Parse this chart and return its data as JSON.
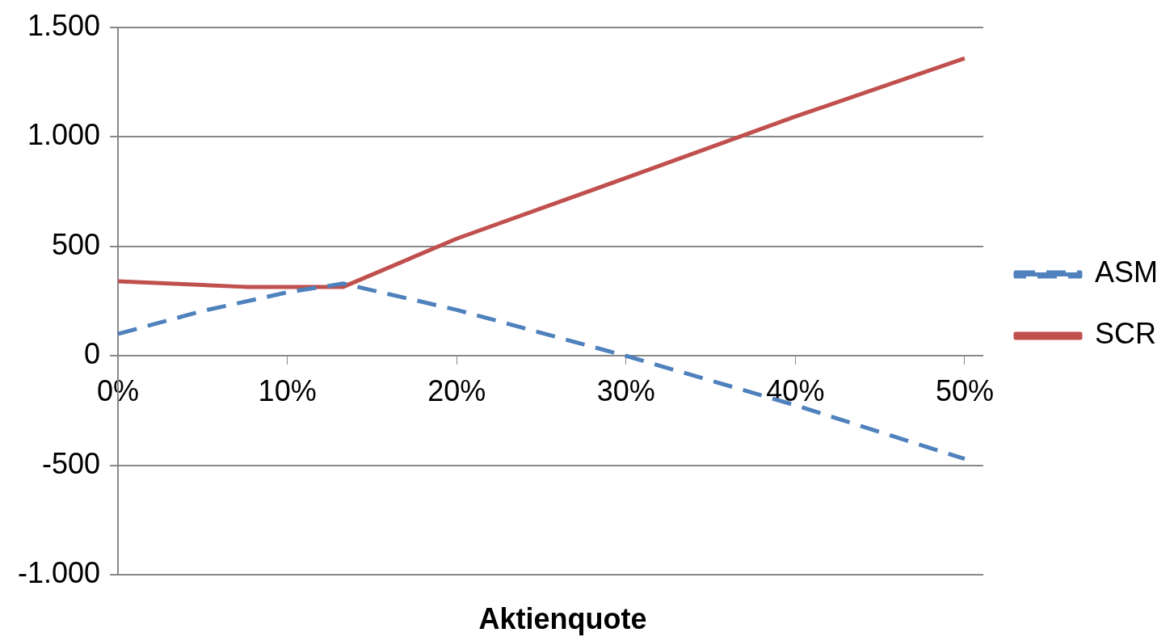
{
  "chart_data": {
    "type": "line",
    "xlabel": "Aktienquote",
    "grid": "y",
    "legend": "right",
    "marker": "none",
    "xlim": [
      0,
      51.1
    ],
    "xticks": [
      {
        "value": 0,
        "label": "0%"
      },
      {
        "value": 10,
        "label": "10%"
      },
      {
        "value": 20,
        "label": "20%"
      },
      {
        "value": 30,
        "label": "30%"
      },
      {
        "value": 40,
        "label": "40%"
      },
      {
        "value": 50,
        "label": "50%"
      }
    ],
    "ylim": [
      -1000,
      1500
    ],
    "yticks": [
      {
        "value": -1000,
        "label": "-1.000"
      },
      {
        "value": -500,
        "label": "-500"
      },
      0,
      500,
      {
        "value": 1000,
        "label": "1.000"
      },
      {
        "value": 1500,
        "label": "1.500"
      }
    ],
    "series": [
      {
        "name": "ASM",
        "color": "#4f81bd",
        "line_style": "dashed",
        "x": [
          0,
          5,
          10,
          13.3,
          20,
          30,
          40,
          50
        ],
        "values": [
          100,
          205,
          290,
          330,
          210,
          0,
          -225,
          -470
        ]
      },
      {
        "name": "SCR",
        "color": "#c0504d",
        "line_style": "solid",
        "x": [
          0,
          7.5,
          13.3,
          20,
          30,
          40,
          50
        ],
        "values": [
          340,
          315,
          315,
          535,
          812,
          1092,
          1358
        ]
      }
    ]
  }
}
